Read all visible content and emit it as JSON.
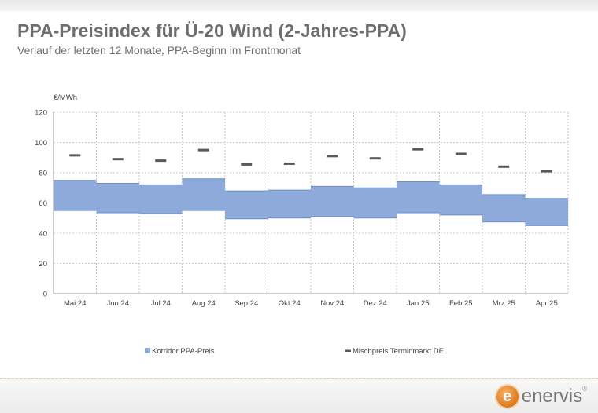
{
  "header": {
    "title": "PPA-Preisindex für Ü-20 Wind (2-Jahres-PPA)",
    "subtitle": "Verlauf der letzten 12 Monate, PPA-Beginn im Frontmonat"
  },
  "colors": {
    "corridor": "#8eaadb",
    "corridor_edge": "#6f8fc9",
    "marker": "#595959",
    "grid": "#c8c8c8",
    "axis_text": "#404040"
  },
  "chart_data": {
    "type": "bar",
    "ylabel": "€/MWh",
    "ylim": [
      0,
      120
    ],
    "yticks": [
      0,
      20,
      40,
      60,
      80,
      100,
      120
    ],
    "grid": true,
    "legend_position": "bottom",
    "categories": [
      "Mai 24",
      "Jun 24",
      "Jul 24",
      "Aug 24",
      "Sep 24",
      "Okt 24",
      "Nov 24",
      "Dez 24",
      "Jan 25",
      "Feb 25",
      "Mrz 25",
      "Apr 25"
    ],
    "series": [
      {
        "name": "Korridor PPA-Preis",
        "kind": "range",
        "low": [
          55,
          53.5,
          53,
          55,
          49.5,
          50,
          51,
          50,
          53.5,
          52,
          47.5,
          45
        ],
        "high": [
          75,
          73,
          72,
          76,
          68,
          68.5,
          71,
          70,
          74,
          72,
          65.5,
          63
        ]
      },
      {
        "name": "Mischpreis Terminmarkt DE",
        "kind": "marker",
        "values": [
          91.5,
          89,
          88,
          95,
          85.5,
          86,
          91,
          89.5,
          95.5,
          92.5,
          84,
          81
        ]
      }
    ]
  },
  "logo": {
    "mark": "e",
    "text": "enervis",
    "reg": "®"
  }
}
